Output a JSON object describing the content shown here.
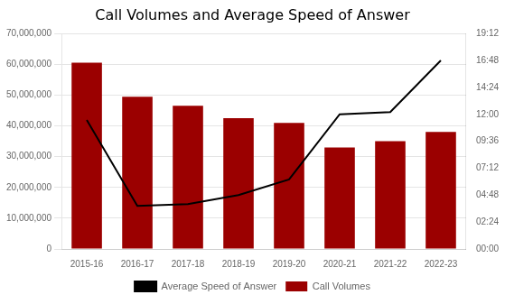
{
  "chart_data": {
    "type": "bar",
    "title": "Call Volumes and Average Speed of Answer",
    "categories": [
      "2015-16",
      "2016-17",
      "2017-18",
      "2018-19",
      "2019-20",
      "2020-21",
      "2021-22",
      "2022-23"
    ],
    "series": [
      {
        "name": "Call Volumes",
        "type": "bar",
        "color": "#9b0000",
        "values": [
          60500000,
          49500000,
          46500000,
          42500000,
          41000000,
          33000000,
          35000000,
          38000000
        ]
      },
      {
        "name": "Average Speed of Answer",
        "type": "line",
        "color": "#000000",
        "axis": "y2",
        "values": [
          690,
          230,
          240,
          288,
          372,
          720,
          732,
          1008
        ]
      }
    ],
    "ylim": [
      0,
      70000000
    ],
    "yticks": [
      0,
      {
        "value": 10000000,
        "label": "10,000,000"
      },
      {
        "value": 20000000,
        "label": "20,000,000"
      },
      {
        "value": 30000000,
        "label": "30,000,000"
      },
      {
        "value": 40000000,
        "label": "40,000,000"
      },
      {
        "value": 50000000,
        "label": "50,000,000"
      },
      {
        "value": 60000000,
        "label": "60,000,000"
      },
      {
        "value": 70000000,
        "label": "70,000,000"
      }
    ],
    "y2lim": [
      0,
      1152
    ],
    "y2ticks": [
      {
        "value": 0,
        "label": "00:00"
      },
      {
        "value": 144,
        "label": "02:24"
      },
      {
        "value": 288,
        "label": "04:48"
      },
      {
        "value": 432,
        "label": "07:12"
      },
      {
        "value": 576,
        "label": "09:36"
      },
      {
        "value": 720,
        "label": "12:00"
      },
      {
        "value": 864,
        "label": "14:24"
      },
      {
        "value": 1008,
        "label": "16:48"
      },
      {
        "value": 1152,
        "label": "19:12"
      }
    ],
    "grid": true,
    "legend": "bottom"
  }
}
